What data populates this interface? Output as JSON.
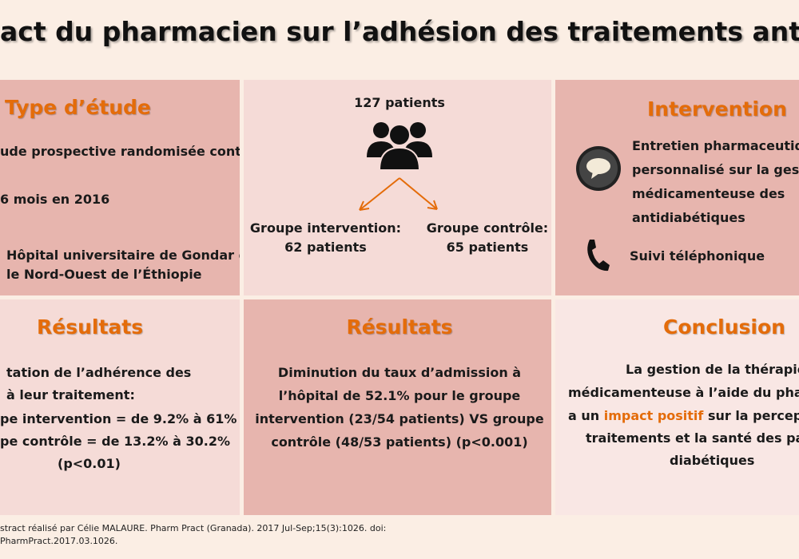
{
  "header": {
    "title": "act du pharmacien sur l’adhésion des traitements antidiabét"
  },
  "study_type": {
    "heading": "Type d’étude",
    "items": [
      "ude prospective randomisée contrôlée",
      "6 mois en 2016"
    ],
    "location": [
      "Hôpital universitaire de Gondar dans",
      "le Nord-Ouest de l’Éthiopie"
    ]
  },
  "population": {
    "total": "127 patients",
    "groups": [
      {
        "label": "Groupe intervention:",
        "count": "62 patients"
      },
      {
        "label": "Groupe contrôle:",
        "count": "65 patients"
      }
    ]
  },
  "intervention": {
    "heading": "Intervention",
    "interview": [
      "Entretien pharmaceutiq",
      "personnalisé sur la gest",
      "médicamenteuse des",
      "antidiabétiques"
    ],
    "phone": "Suivi téléphonique"
  },
  "results_adherence": {
    "heading": "Résultats",
    "lines": [
      "tation de l’adhérence des",
      "à leur traitement:",
      "pe intervention = de 9.2% à 61%",
      "pe contrôle = de 13.2% à 30.2%",
      "(p<0.01)"
    ]
  },
  "results_admission": {
    "heading": "Résultats",
    "lines": [
      "Diminution du taux d’admission à",
      "l’hôpital de 52.1% pour le groupe",
      "intervention (23/54 patients) VS groupe",
      "contrôle (48/53 patients) (p<0.001)"
    ]
  },
  "conclusion": {
    "heading": "Conclusion",
    "lines": [
      "La gestion de la thérapie",
      "médicamenteuse à l’aide du phar"
    ],
    "highlight_line": [
      "a un ",
      "impact positif",
      " sur la percept"
    ],
    "tail": [
      "traitements et la santé des pat",
      "diabétiques"
    ]
  },
  "footer": {
    "lines": [
      "stract réalisé par Célie MALAURE. Pharm Pract (Granada). 2017 Jul-Sep;15(3):1026. doi:",
      "PharmPract.2017.03.1026."
    ]
  }
}
